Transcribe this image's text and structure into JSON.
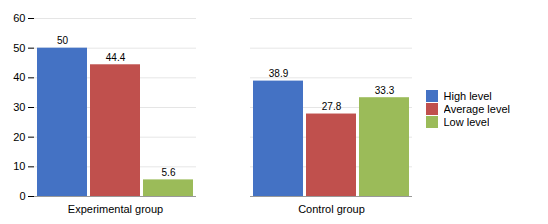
{
  "chart_data": {
    "type": "bar",
    "categories": [
      "Experimental group",
      "Control group"
    ],
    "series": [
      {
        "name": "High level",
        "color": "#4472C4",
        "values": [
          50,
          38.9
        ]
      },
      {
        "name": "Average level",
        "color": "#C0504D",
        "values": [
          44.4,
          27.8
        ]
      },
      {
        "name": "Low level",
        "color": "#9BBB59",
        "values": [
          5.6,
          33.3
        ]
      }
    ],
    "ylim": [
      0,
      60
    ],
    "yticks": [
      0,
      10,
      20,
      30,
      40,
      50,
      60
    ],
    "grid": true,
    "legend": "right",
    "data_labels": true
  }
}
